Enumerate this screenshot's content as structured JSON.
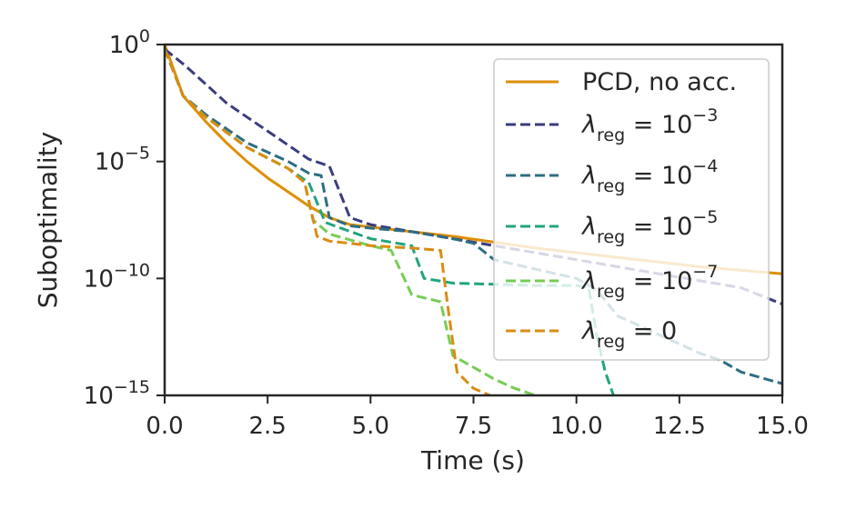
{
  "chart_data": {
    "type": "line",
    "xlabel": "Time (s)",
    "ylabel": "Suboptimality",
    "xlim": [
      0,
      15
    ],
    "ylim_log10": [
      -15,
      0
    ],
    "yscale": "log",
    "grid": false,
    "legend_position": "upper-right",
    "xticks": [
      "0.0",
      "2.5",
      "5.0",
      "7.5",
      "10.0",
      "12.5",
      "15.0"
    ],
    "yticks": [
      {
        "base": "10",
        "exp": "0"
      },
      {
        "base": "10",
        "exp": "−5"
      },
      {
        "base": "10",
        "exp": "−10"
      },
      {
        "base": "10",
        "exp": "−15"
      }
    ],
    "series": [
      {
        "name": "PCD, no acc.",
        "legend_sub": "",
        "legend_value": "",
        "color": "#de8f05",
        "dash": "solid",
        "x": [
          0.0,
          0.45,
          1.0,
          1.5,
          2.0,
          2.5,
          3.0,
          3.5,
          4.0,
          4.5,
          5.0,
          6.0,
          7.0,
          8.0,
          9.0,
          10.0,
          11.0,
          12.0,
          13.0,
          14.0,
          15.0
        ],
        "y": [
          0,
          -2.2,
          -3.3,
          -4.2,
          -5.0,
          -5.7,
          -6.3,
          -6.9,
          -7.4,
          -7.7,
          -7.8,
          -8.0,
          -8.2,
          -8.45,
          -8.7,
          -8.9,
          -9.1,
          -9.3,
          -9.5,
          -9.65,
          -9.8
        ]
      },
      {
        "name": "",
        "legend_sub": "reg",
        "legend_value": "10^-3",
        "color": "#3b3d7f",
        "dash": "dashed",
        "x": [
          0.0,
          0.5,
          1.0,
          1.5,
          2.0,
          2.5,
          3.0,
          3.5,
          4.0,
          4.5,
          5.0,
          5.5,
          6.0,
          6.5,
          7.0,
          8.0,
          9.0,
          10.0,
          11.0,
          12.0,
          13.0,
          14.0,
          15.0
        ],
        "y": [
          -0.2,
          -0.9,
          -1.7,
          -2.5,
          -3.1,
          -3.7,
          -4.3,
          -4.9,
          -5.2,
          -7.4,
          -7.7,
          -7.85,
          -8.0,
          -8.15,
          -8.3,
          -8.6,
          -8.9,
          -9.2,
          -9.5,
          -9.8,
          -10.1,
          -10.4,
          -11.1
        ]
      },
      {
        "name": "",
        "legend_sub": "reg",
        "legend_value": "10^-4",
        "color": "#2c6e83",
        "dash": "dashed",
        "x": [
          0.0,
          0.45,
          1.0,
          2.0,
          3.0,
          3.5,
          3.8,
          4.0,
          4.5,
          5.0,
          6.0,
          7.0,
          7.5,
          8.0,
          9.0,
          10.0,
          10.5,
          11.0,
          12.0,
          13.0,
          13.5,
          14.0,
          15.0
        ],
        "y": [
          -0.2,
          -2.2,
          -3.0,
          -4.2,
          -5.0,
          -5.5,
          -5.6,
          -7.4,
          -7.75,
          -7.85,
          -8.0,
          -8.3,
          -8.5,
          -9.2,
          -9.6,
          -10.0,
          -10.5,
          -11.6,
          -12.4,
          -13.2,
          -13.5,
          -14.0,
          -14.5
        ]
      },
      {
        "name": "",
        "legend_sub": "reg",
        "legend_value": "10^-5",
        "color": "#22a47e",
        "dash": "dashed",
        "x": [
          0.0,
          0.45,
          1.0,
          2.0,
          3.0,
          3.5,
          3.9,
          4.2,
          5.0,
          6.0,
          6.3,
          7.0,
          8.0,
          9.0,
          10.0,
          10.3,
          10.5,
          10.7,
          10.9
        ],
        "y": [
          -0.2,
          -2.2,
          -3.1,
          -4.4,
          -5.3,
          -5.9,
          -7.6,
          -7.8,
          -8.3,
          -8.6,
          -10.0,
          -10.2,
          -10.25,
          -10.3,
          -10.3,
          -10.4,
          -12.5,
          -14.0,
          -15.0
        ]
      },
      {
        "name": "",
        "legend_sub": "reg",
        "legend_value": "10^-7",
        "color": "#77cc55",
        "dash": "dashed",
        "x": [
          0.0,
          0.45,
          1.0,
          2.0,
          3.0,
          3.4,
          3.6,
          4.0,
          5.0,
          5.5,
          6.0,
          6.7,
          7.0,
          7.5,
          8.0,
          8.5,
          9.0
        ],
        "y": [
          -0.2,
          -2.2,
          -3.1,
          -4.4,
          -5.3,
          -5.9,
          -7.5,
          -8.1,
          -8.6,
          -8.8,
          -10.7,
          -11.0,
          -13.3,
          -13.8,
          -14.3,
          -14.7,
          -15.0
        ]
      },
      {
        "name": "",
        "legend_sub": "reg",
        "legend_value": "0",
        "color": "#d98c12",
        "dash": "dashed",
        "x": [
          0.0,
          0.45,
          1.0,
          2.0,
          3.0,
          3.4,
          3.7,
          4.0,
          5.0,
          6.0,
          6.7,
          6.9,
          7.1,
          7.5,
          7.9
        ],
        "y": [
          -0.2,
          -2.2,
          -3.1,
          -4.4,
          -5.3,
          -5.9,
          -8.2,
          -8.4,
          -8.6,
          -8.7,
          -8.8,
          -11.5,
          -14.0,
          -14.7,
          -15.0
        ]
      }
    ]
  }
}
